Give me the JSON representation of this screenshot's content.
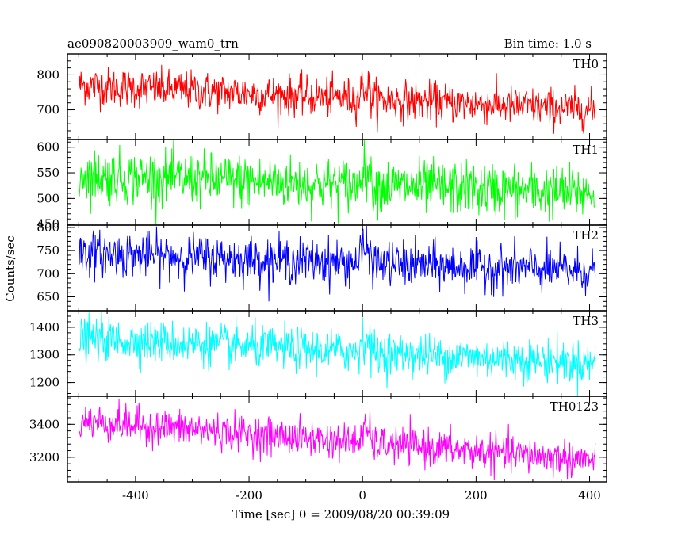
{
  "chart_data": {
    "type": "line",
    "title": "ae090820003909_wam0_trn",
    "subtitle": "Bin time: 1.0 s",
    "xlabel": "Time [sec] 0 = 2009/08/20 00:39:09",
    "ylabel": "Counts/sec",
    "xlim": [
      -520,
      430
    ],
    "x_ticks": [
      "-400",
      "-200",
      "0",
      "200",
      "400"
    ],
    "x_tick_values": [
      -400,
      -200,
      0,
      200,
      400
    ],
    "x_range": [
      -499,
      410
    ],
    "grid": false,
    "panels": [
      {
        "name": "TH0",
        "color": "#ff0000",
        "ylim": [
          615,
          860
        ],
        "yticks": [
          700,
          800
        ],
        "ytick_labels": [
          "700",
          "800"
        ],
        "trend_start": 770,
        "trend_end": 700,
        "noise": 28
      },
      {
        "name": "TH1",
        "color": "#00ff00",
        "ylim": [
          448,
          615
        ],
        "yticks": [
          450,
          500,
          550,
          600
        ],
        "ytick_labels": [
          "450",
          "500",
          "550",
          "600"
        ],
        "trend_start": 545,
        "trend_end": 510,
        "noise": 26
      },
      {
        "name": "TH2",
        "color": "#0000ff",
        "ylim": [
          620,
          805
        ],
        "yticks": [
          650,
          700,
          750,
          800
        ],
        "ytick_labels": [
          "650",
          "700",
          "750",
          "800"
        ],
        "trend_start": 745,
        "trend_end": 705,
        "noise": 24
      },
      {
        "name": "TH3",
        "color": "#00ffff",
        "ylim": [
          1150,
          1460
        ],
        "yticks": [
          1200,
          1300,
          1400
        ],
        "ytick_labels": [
          "1200",
          "1300",
          "1400"
        ],
        "trend_start": 1360,
        "trend_end": 1270,
        "noise": 38
      },
      {
        "name": "TH0123",
        "color": "#ff00ff",
        "ylim": [
          3050,
          3570
        ],
        "yticks": [
          3200,
          3400
        ],
        "ytick_labels": [
          "3200",
          "3400"
        ],
        "trend_start": 3420,
        "trend_end": 3180,
        "noise": 55
      }
    ]
  }
}
